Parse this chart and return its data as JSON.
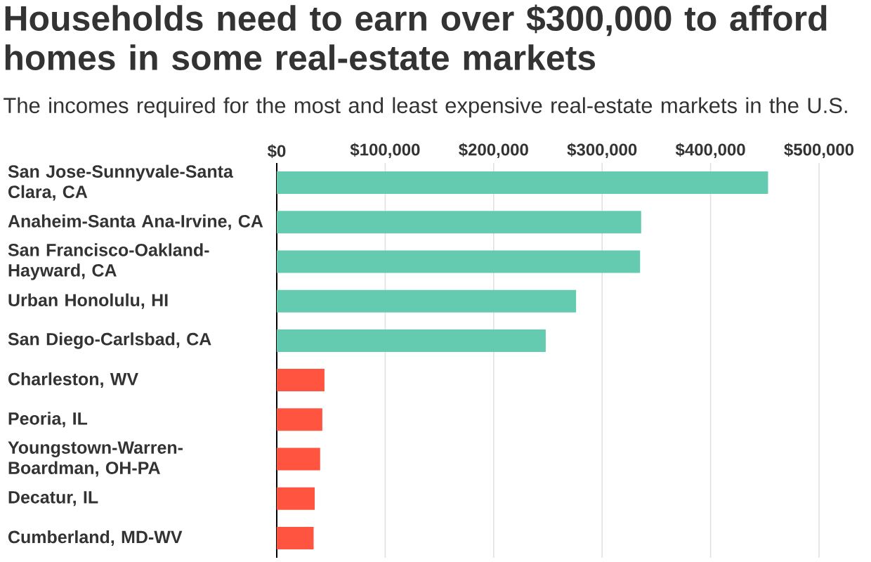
{
  "chart_data": {
    "type": "bar",
    "orientation": "horizontal",
    "title": "Households need to earn over $300,000 to afford homes in some real-estate markets",
    "subtitle": "The incomes required for the most and least expensive real-estate markets in the U.S.",
    "categories": [
      "San Jose-Sunnyvale-Santa Clara, CA",
      "Anaheim-Santa Ana-Irvine, CA",
      "San Francisco-Oakland-Hayward, CA",
      "Urban Honolulu, HI",
      "San Diego-Carlsbad, CA",
      "Charleston, WV",
      "Peoria, IL",
      "Youngstown-Warren-Boardman, OH-PA",
      "Decatur, IL",
      "Cumberland, MD-WV"
    ],
    "values": [
      453000,
      336000,
      335000,
      276000,
      248000,
      44000,
      42000,
      40000,
      35000,
      34000
    ],
    "colors": [
      "#64cbb0",
      "#64cbb0",
      "#64cbb0",
      "#64cbb0",
      "#64cbb0",
      "#ff5540",
      "#ff5540",
      "#ff5540",
      "#ff5540",
      "#ff5540"
    ],
    "xlim": [
      0,
      500000
    ],
    "xticks": [
      {
        "value": 0,
        "label": "$0"
      },
      {
        "value": 100000,
        "label": "$100,000"
      },
      {
        "value": 200000,
        "label": "$200,000"
      },
      {
        "value": 300000,
        "label": "$300,000"
      },
      {
        "value": 400000,
        "label": "$400,000"
      },
      {
        "value": 500000,
        "label": "$500,000"
      }
    ],
    "grid": "x"
  }
}
